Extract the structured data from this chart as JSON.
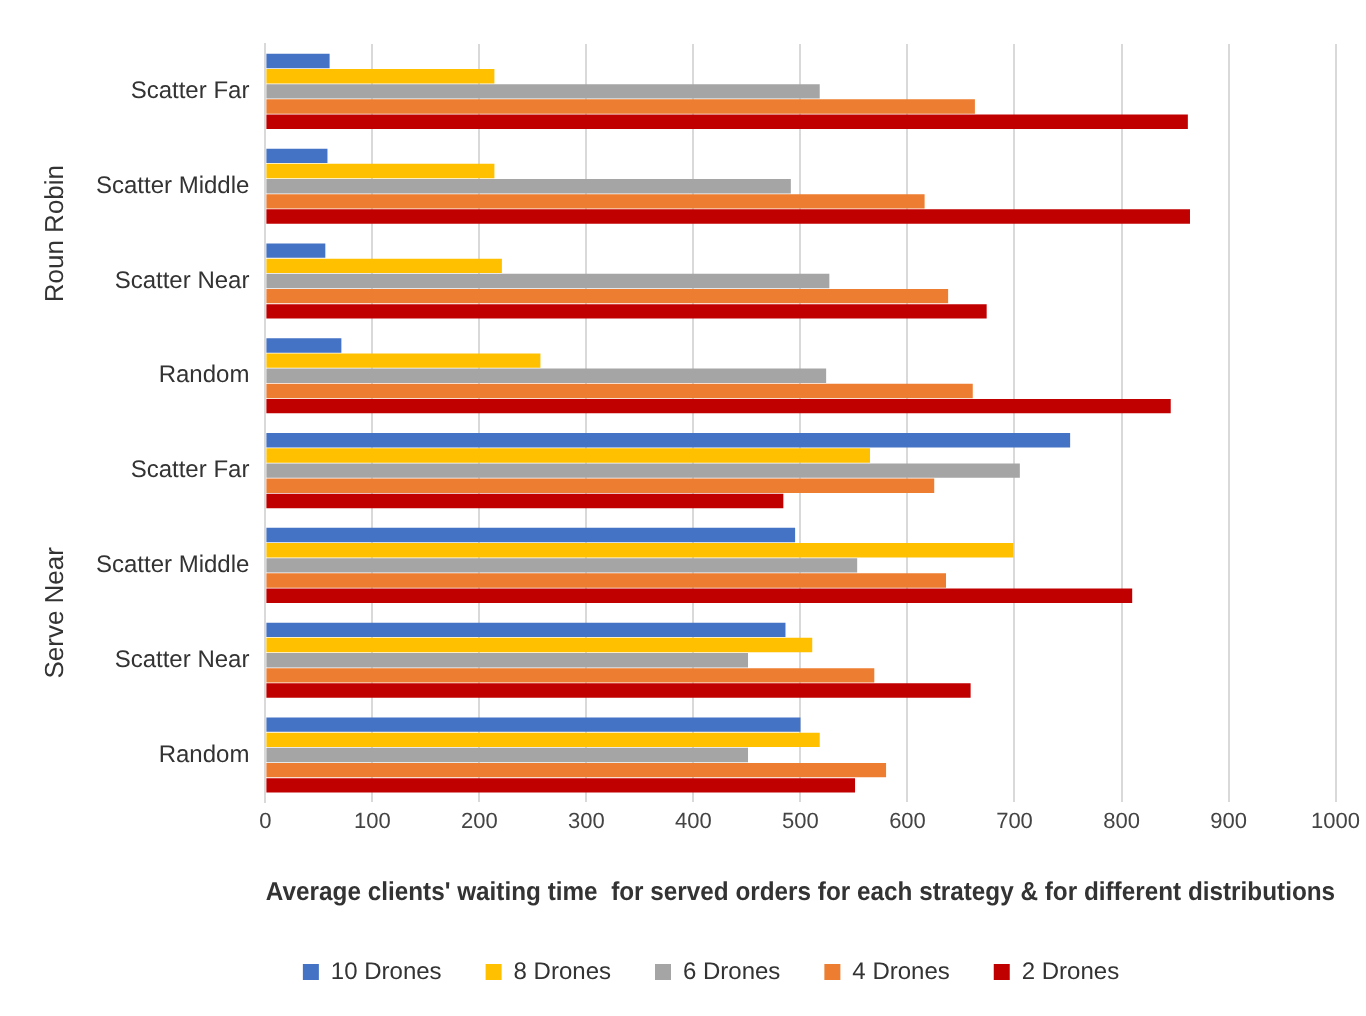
{
  "chart_data": {
    "type": "bar",
    "orientation": "horizontal",
    "xlabel": "Average clients' waiting time  for served orders for each strategy & for different distributions",
    "categories": [
      "Scatter Far",
      "Scatter Middle",
      "Scatter Near",
      "Random",
      "Scatter Far",
      "Scatter Middle",
      "Scatter Near",
      "Random"
    ],
    "series": [
      {
        "name": "10 Drones",
        "color": "#4472c4",
        "values": [
          60,
          58,
          56,
          71,
          752,
          495,
          486,
          500
        ]
      },
      {
        "name": "8 Drones",
        "color": "#ffc000",
        "values": [
          214,
          214,
          221,
          257,
          565,
          699,
          511,
          518
        ]
      },
      {
        "name": "6 Drones",
        "color": "#a5a5a5",
        "values": [
          518,
          491,
          527,
          524,
          705,
          553,
          451,
          451
        ]
      },
      {
        "name": "4 Drones",
        "color": "#ed7d31",
        "values": [
          663,
          616,
          638,
          661,
          625,
          636,
          569,
          580
        ]
      },
      {
        "name": "2 Drones",
        "color": "#c00000",
        "values": [
          862,
          864,
          674,
          846,
          484,
          810,
          659,
          551
        ]
      }
    ],
    "xlim": [
      0,
      1000
    ],
    "xticks": [
      0,
      100,
      200,
      300,
      400,
      500,
      600,
      700,
      800,
      900,
      1000
    ],
    "grid": "x",
    "legend": "bottom",
    "annotations": [
      "Roun Robin",
      "Serve Near"
    ]
  }
}
